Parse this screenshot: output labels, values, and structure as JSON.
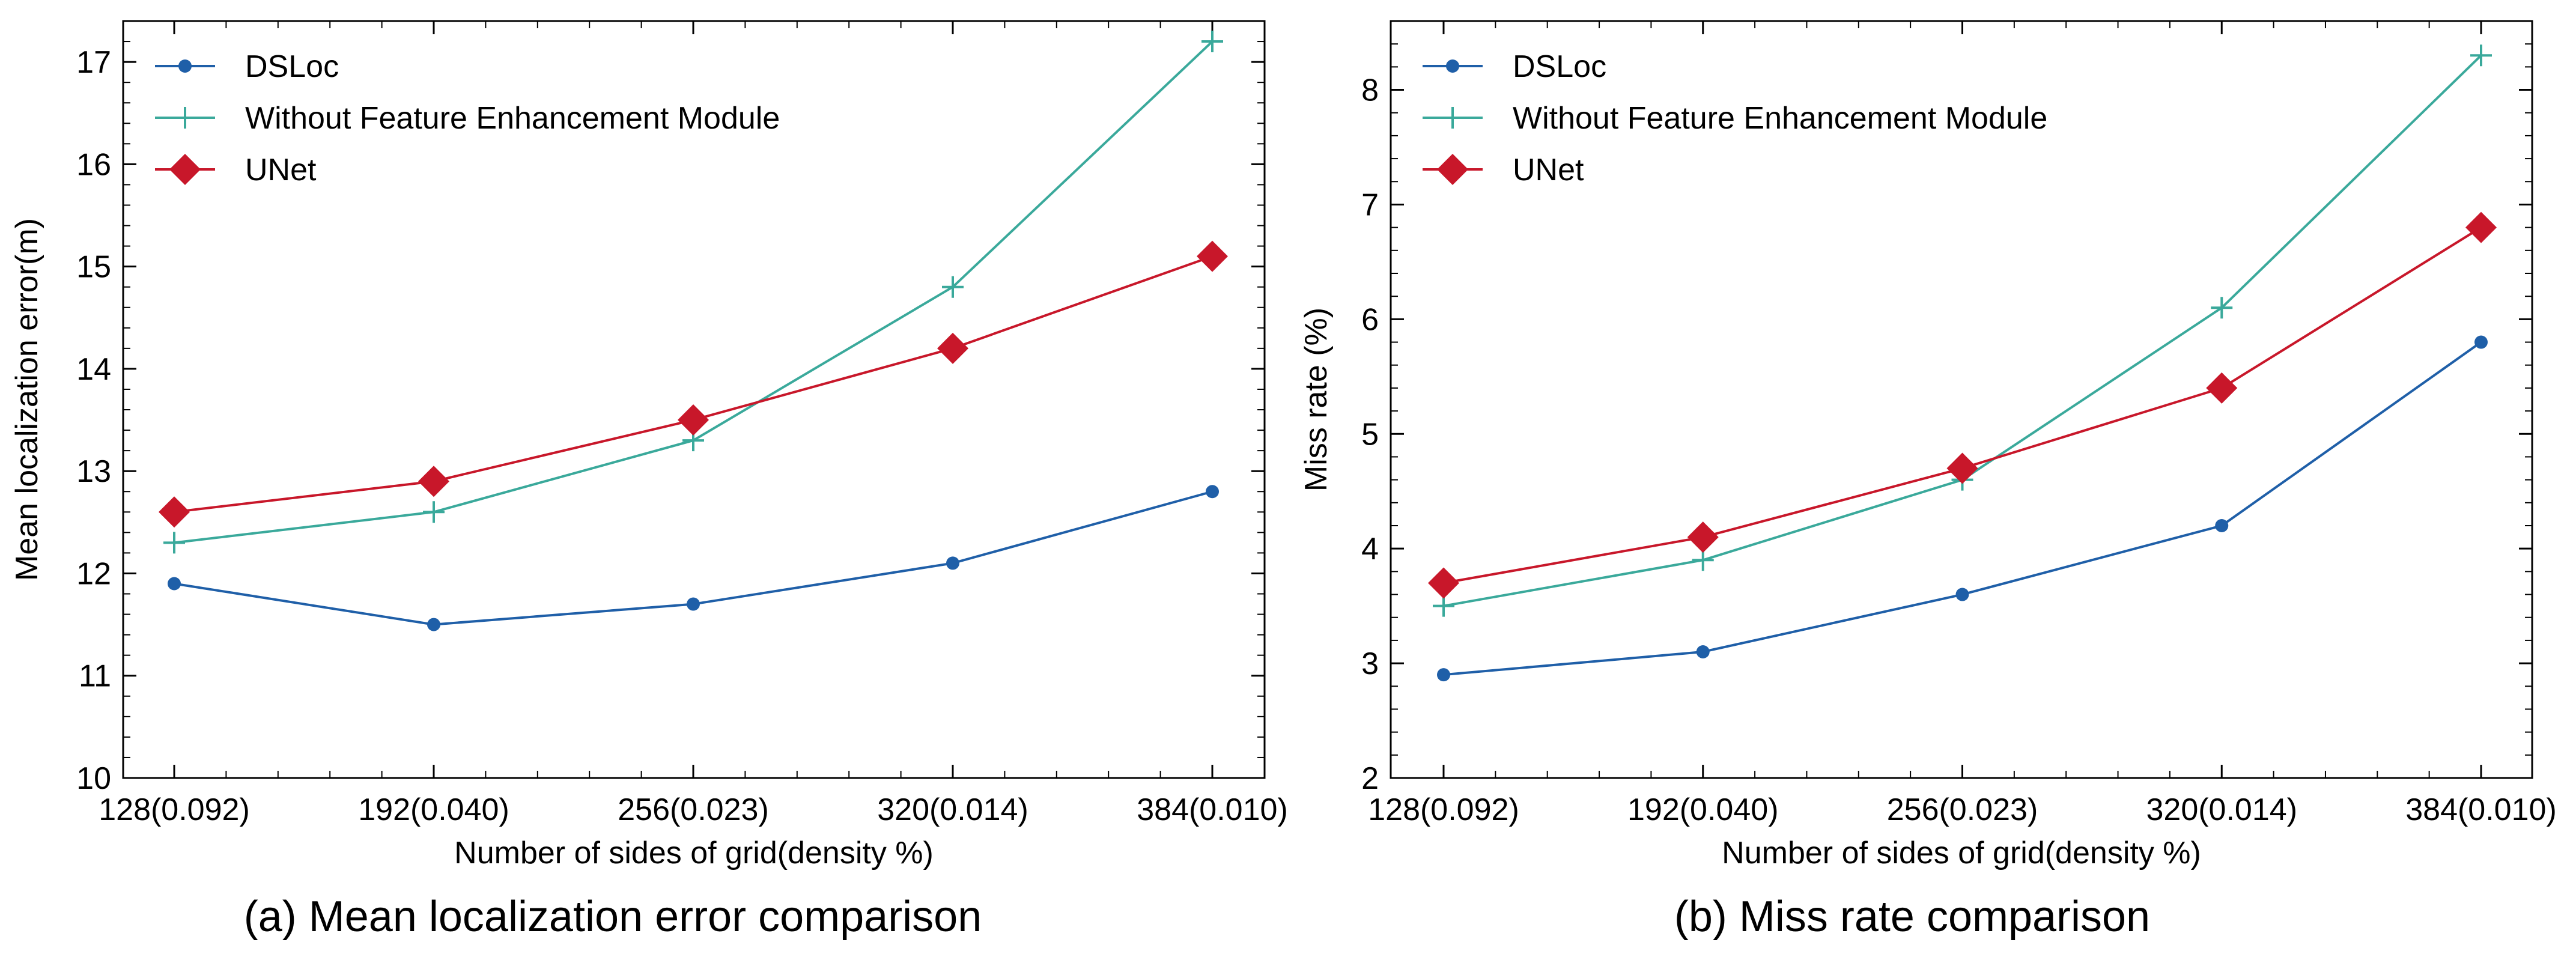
{
  "chart_data": [
    {
      "type": "line",
      "panel": "a",
      "caption": "(a)  Mean localization error comparison",
      "categories": [
        "128(0.092)",
        "192(0.040)",
        "256(0.023)",
        "320(0.014)",
        "384(0.010)"
      ],
      "xlabel": "Number of sides of grid(density %)",
      "ylabel": "Mean localization error(m)",
      "ylim": [
        10,
        17.4
      ],
      "yticks": [
        10,
        11,
        12,
        13,
        14,
        15,
        16,
        17
      ],
      "legend_position": "top-left",
      "series": [
        {
          "name": "DSLoc",
          "marker": "circle",
          "color": "#1f5fa8",
          "values": [
            11.9,
            11.5,
            11.7,
            12.1,
            12.8
          ]
        },
        {
          "name": "Without Feature Enhancement Module",
          "marker": "plus",
          "color": "#3aa99b",
          "values": [
            12.3,
            12.6,
            13.3,
            14.8,
            17.2
          ]
        },
        {
          "name": "UNet",
          "marker": "diamond",
          "color": "#c8172a",
          "values": [
            12.6,
            12.9,
            13.5,
            14.2,
            15.1
          ]
        }
      ]
    },
    {
      "type": "line",
      "panel": "b",
      "caption": "(b)  Miss rate comparison",
      "categories": [
        "128(0.092)",
        "192(0.040)",
        "256(0.023)",
        "320(0.014)",
        "384(0.010)"
      ],
      "xlabel": "Number of sides of grid(density %)",
      "ylabel": "Miss rate (%)",
      "ylim": [
        2,
        8.6
      ],
      "yticks": [
        2,
        3,
        4,
        5,
        6,
        7,
        8
      ],
      "legend_position": "top-left",
      "series": [
        {
          "name": "DSLoc",
          "marker": "circle",
          "color": "#1f5fa8",
          "values": [
            2.9,
            3.1,
            3.6,
            4.2,
            5.8
          ]
        },
        {
          "name": "Without Feature Enhancement Module",
          "marker": "plus",
          "color": "#3aa99b",
          "values": [
            3.5,
            3.9,
            4.6,
            6.1,
            8.3
          ]
        },
        {
          "name": "UNet",
          "marker": "diamond",
          "color": "#c8172a",
          "values": [
            3.7,
            4.1,
            4.7,
            5.4,
            6.8
          ]
        }
      ]
    }
  ]
}
